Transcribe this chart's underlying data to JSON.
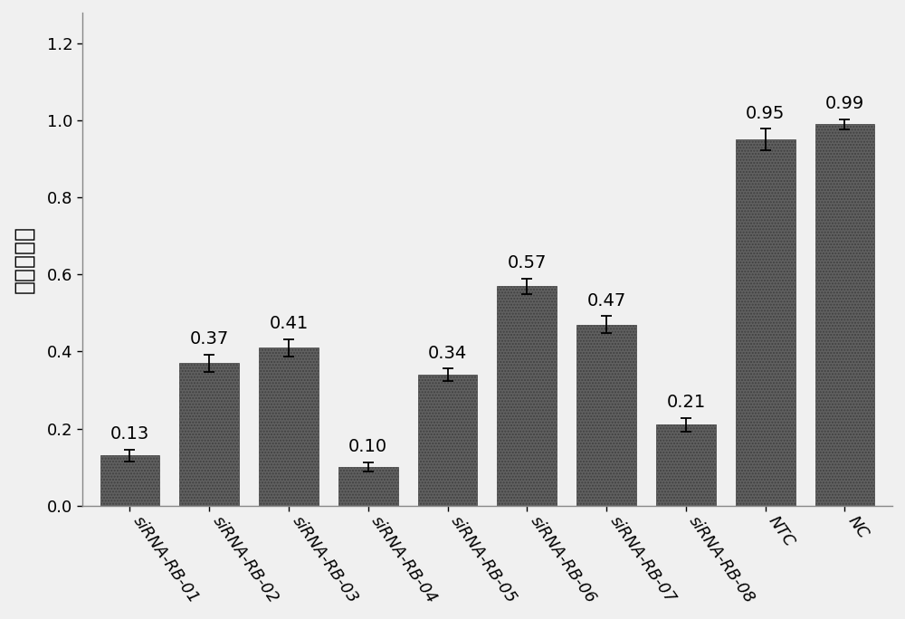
{
  "categories": [
    "siRNA-RB-01",
    "siRNA-RB-02",
    "siRNA-RB-03",
    "siRNA-RB-04",
    "siRNA-RB-05",
    "siRNA-RB-06",
    "siRNA-RB-07",
    "siRNA-RB-08",
    "NTC",
    "NC"
  ],
  "values": [
    0.13,
    0.37,
    0.41,
    0.1,
    0.34,
    0.57,
    0.47,
    0.21,
    0.95,
    0.99
  ],
  "errors": [
    0.015,
    0.022,
    0.022,
    0.012,
    0.016,
    0.02,
    0.022,
    0.018,
    0.028,
    0.013
  ],
  "bar_color": "#606060",
  "bar_edge_color": "#404040",
  "ylabel": "相对表达量",
  "ylim": [
    0,
    1.28
  ],
  "yticks": [
    0,
    0.2,
    0.4,
    0.6,
    0.8,
    1.0,
    1.2
  ],
  "value_labels": [
    "0.13",
    "0.37",
    "0.41",
    "0.10",
    "0.34",
    "0.57",
    "0.47",
    "0.21",
    "0.95",
    "0.99"
  ],
  "bar_width": 0.75,
  "label_fontsize": 14,
  "tick_fontsize": 13,
  "ylabel_fontsize": 18,
  "xtick_rotation": -55,
  "figure_facecolor": "#f0f0f0",
  "axes_facecolor": "#f0f0f0",
  "hatch": ".....",
  "spine_color": "#888888"
}
